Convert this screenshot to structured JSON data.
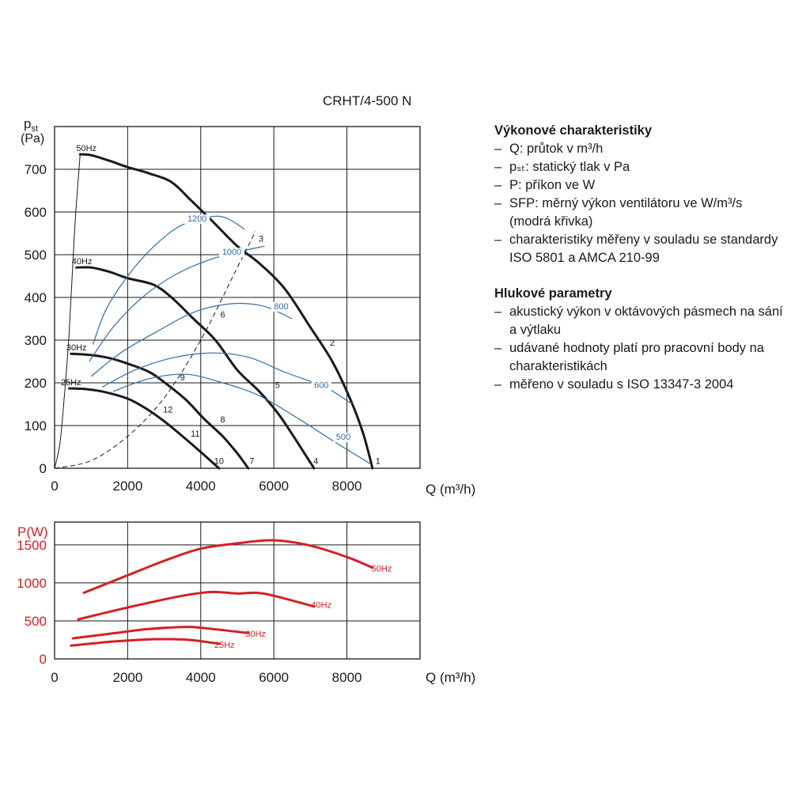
{
  "title": "CRHT/4-500 N",
  "legend": {
    "section1": {
      "heading": "Výkonové charakteristiky",
      "items": [
        "Q: průtok v m³/h",
        "pₛₜ: statický tlak v Pa",
        "P: příkon ve W",
        "SFP: měrný výkon ventilátoru ve W/m³/s",
        "(modrá křivka)",
        "charakteristiky měřeny v souladu se standardy ISO 5801 a AMCA 210-99"
      ]
    },
    "section2": {
      "heading": "Hlukové parametry",
      "items": [
        "akustický výkon v oktávových pásmech na sání a výtlaku",
        "udávané hodnoty platí pro pracovní body na charakteristikách",
        "měřeno v souladu s ISO 13347-3 2004"
      ]
    }
  },
  "colors": {
    "pressure": "#1a1a1a",
    "sfp": "#2f6fa8",
    "power": "#d42027",
    "grid": "#1a1a1a"
  },
  "chart_data": [
    {
      "type": "line",
      "ylabel": "pst",
      "ylabel_sub": "st",
      "yunit": "(Pa)",
      "xlabel": "Q (m³/h)",
      "xlim": [
        0,
        10000
      ],
      "ylim": [
        0,
        800
      ],
      "xticks": [
        0,
        2000,
        4000,
        6000,
        8000
      ],
      "yticks": [
        0,
        100,
        200,
        300,
        400,
        500,
        600,
        700
      ],
      "grid": true,
      "series": [
        {
          "name": "50Hz",
          "kind": "pressure",
          "x": [
            700,
            1000,
            1500,
            2000,
            2600,
            3200,
            3700,
            4300,
            5000,
            5600,
            6300,
            7000,
            7600,
            8100,
            8450,
            8700
          ],
          "y": [
            735,
            733,
            720,
            705,
            690,
            670,
            630,
            580,
            520,
            480,
            420,
            330,
            250,
            160,
            80,
            0
          ]
        },
        {
          "name": "40Hz",
          "kind": "pressure",
          "x": [
            600,
            1000,
            1500,
            2000,
            2700,
            3200,
            3800,
            4400,
            5000,
            5600,
            6100,
            6500,
            6800,
            7100
          ],
          "y": [
            470,
            470,
            460,
            445,
            430,
            400,
            350,
            300,
            230,
            180,
            130,
            80,
            40,
            0
          ]
        },
        {
          "name": "30Hz",
          "kind": "pressure",
          "x": [
            450,
            1000,
            1500,
            2000,
            2600,
            3100,
            3600,
            4100,
            4600,
            5000,
            5300
          ],
          "y": [
            268,
            265,
            258,
            245,
            225,
            195,
            160,
            115,
            75,
            35,
            0
          ]
        },
        {
          "name": "25Hz",
          "kind": "pressure",
          "x": [
            400,
            900,
            1400,
            2000,
            2500,
            3000,
            3500,
            4000,
            4500
          ],
          "y": [
            187,
            185,
            178,
            163,
            140,
            110,
            75,
            38,
            0
          ]
        },
        {
          "name": "1200",
          "kind": "sfp",
          "x": [
            1050,
            1400,
            2000,
            2700,
            3500,
            4500,
            5200
          ],
          "y": [
            290,
            370,
            450,
            518,
            570,
            590,
            560
          ]
        },
        {
          "name": "1000",
          "kind": "sfp",
          "x": [
            950,
            1600,
            2400,
            3300,
            4300,
            5200,
            5750
          ],
          "y": [
            250,
            330,
            400,
            453,
            490,
            510,
            520
          ]
        },
        {
          "name": "800",
          "kind": "sfp",
          "x": [
            1000,
            1800,
            2800,
            3800,
            4800,
            5700,
            6500
          ],
          "y": [
            215,
            270,
            320,
            365,
            385,
            380,
            350
          ]
        },
        {
          "name": "600",
          "kind": "sfp",
          "x": [
            1300,
            2200,
            3200,
            4300,
            5300,
            6300,
            7400,
            8150
          ],
          "y": [
            190,
            230,
            258,
            270,
            260,
            225,
            190,
            150
          ]
        },
        {
          "name": "500",
          "kind": "sfp",
          "x": [
            1600,
            2600,
            3600,
            4600,
            5600,
            6600,
            7700,
            8650
          ],
          "y": [
            180,
            210,
            220,
            200,
            170,
            120,
            60,
            10
          ]
        },
        {
          "name": "",
          "kind": "system",
          "x": [
            0,
            1000,
            2000,
            3000,
            4000,
            5000,
            5500
          ],
          "y": [
            0,
            18,
            75,
            165,
            300,
            470,
            555
          ]
        },
        {
          "name": "",
          "kind": "system",
          "x": [
            0,
            60,
            150,
            250,
            400,
            550,
            700
          ],
          "y": [
            0,
            20,
            60,
            150,
            320,
            560,
            735
          ]
        }
      ],
      "series_labels": [
        {
          "text": "50Hz",
          "x": 870,
          "y": 748
        },
        {
          "text": "40Hz",
          "x": 750,
          "y": 483
        },
        {
          "text": "30Hz",
          "x": 600,
          "y": 281
        },
        {
          "text": "25Hz",
          "x": 450,
          "y": 200
        },
        {
          "text": "1200",
          "x": 3900,
          "y": 583
        },
        {
          "text": "1000",
          "x": 4850,
          "y": 505
        },
        {
          "text": "800",
          "x": 6200,
          "y": 378
        },
        {
          "text": "600",
          "x": 7300,
          "y": 193
        },
        {
          "text": "500",
          "x": 7900,
          "y": 72
        }
      ],
      "annotations": [
        {
          "text": "1",
          "x": 8850,
          "y": 16
        },
        {
          "text": "2",
          "x": 7600,
          "y": 292
        },
        {
          "text": "3",
          "x": 5650,
          "y": 536
        },
        {
          "text": "4",
          "x": 7150,
          "y": 16
        },
        {
          "text": "5",
          "x": 6100,
          "y": 193
        },
        {
          "text": "6",
          "x": 4600,
          "y": 358
        },
        {
          "text": "7",
          "x": 5400,
          "y": 16
        },
        {
          "text": "8",
          "x": 4600,
          "y": 113
        },
        {
          "text": "9",
          "x": 3500,
          "y": 211
        },
        {
          "text": "10",
          "x": 4500,
          "y": 16
        },
        {
          "text": "11",
          "x": 3850,
          "y": 79
        },
        {
          "text": "12",
          "x": 3100,
          "y": 136
        }
      ]
    },
    {
      "type": "line",
      "ylabel": "P(W)",
      "xlabel": "Q (m³/h)",
      "xlim": [
        0,
        10000
      ],
      "ylim": [
        0,
        1800
      ],
      "xticks": [
        0,
        2000,
        4000,
        6000,
        8000
      ],
      "yticks": [
        0,
        500,
        1000,
        1500
      ],
      "grid": true,
      "series": [
        {
          "name": "50Hz",
          "x": [
            800,
            2000,
            3000,
            4000,
            5000,
            6000,
            7000,
            8000,
            8700
          ],
          "y": [
            870,
            1100,
            1290,
            1450,
            1520,
            1560,
            1490,
            1340,
            1200
          ]
        },
        {
          "name": "40Hz",
          "x": [
            650,
            1500,
            2500,
            3500,
            4300,
            5000,
            5500,
            6000,
            7100
          ],
          "y": [
            520,
            620,
            730,
            830,
            880,
            860,
            870,
            830,
            690
          ]
        },
        {
          "name": "30Hz",
          "x": [
            500,
            1500,
            2500,
            3500,
            4000,
            5300
          ],
          "y": [
            270,
            330,
            390,
            420,
            410,
            340
          ]
        },
        {
          "name": "25Hz",
          "x": [
            450,
            1500,
            2500,
            3000,
            3700,
            4500
          ],
          "y": [
            175,
            225,
            255,
            260,
            250,
            200
          ]
        }
      ],
      "series_labels": [
        {
          "text": "50Hz",
          "x": 8950,
          "y": 1180
        },
        {
          "text": "40Hz",
          "x": 7300,
          "y": 700
        },
        {
          "text": "30Hz",
          "x": 5500,
          "y": 320
        },
        {
          "text": "25Hz",
          "x": 4650,
          "y": 175
        }
      ]
    }
  ]
}
